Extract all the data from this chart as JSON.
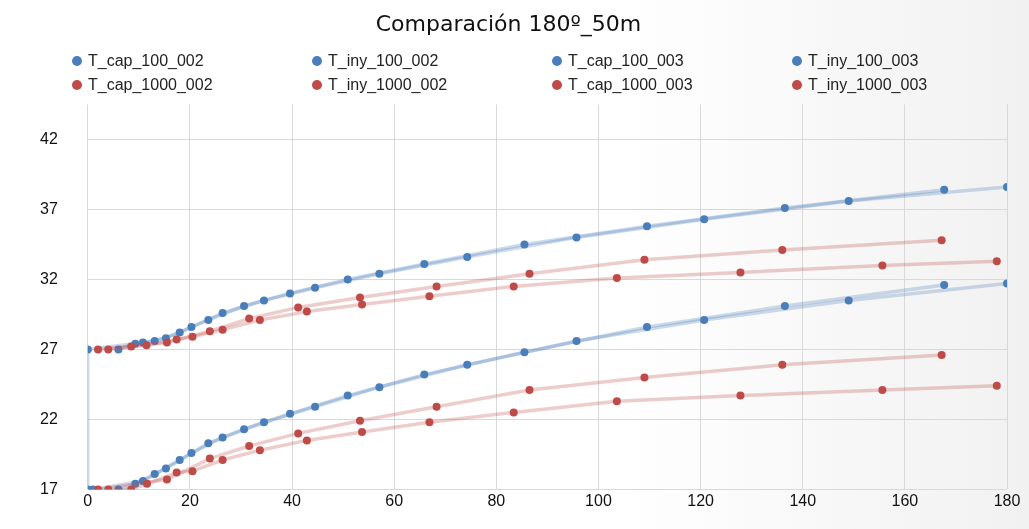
{
  "chart_data": {
    "type": "line",
    "title": "Comparación 180º_50m",
    "marker": "circle",
    "grid": true,
    "legend": "top",
    "line_style": "solid",
    "xlim": [
      0,
      180
    ],
    "xticks": [
      0,
      20,
      40,
      60,
      80,
      100,
      120,
      140,
      160,
      180
    ],
    "ylim": [
      17,
      44.5
    ],
    "yticks": [
      17,
      22,
      27,
      32,
      37,
      42
    ],
    "series": [
      {
        "name": "T_cap_100_002",
        "color": "#4a7ebb",
        "x": [
          1,
          10.8,
          15.3,
          23.6,
          30.6,
          39.6,
          50.9,
          65.9,
          85.5,
          109.5,
          136.5,
          167.7
        ],
        "values": [
          17,
          17.6,
          18.5,
          20.3,
          21.3,
          22.4,
          23.7,
          25.2,
          26.8,
          28.6,
          30.1,
          31.6
        ]
      },
      {
        "name": "T_iny_100_002",
        "color": "#4a7ebb",
        "x": [
          0,
          0,
          10.8,
          15.3,
          23.6,
          30.6,
          39.6,
          50.9,
          65.9,
          85.5,
          109.5,
          136.5,
          167.7
        ],
        "values": [
          17,
          27,
          27.5,
          27.8,
          29.1,
          30.1,
          31.0,
          32.0,
          33.1,
          34.5,
          35.8,
          37.1,
          38.4
        ]
      },
      {
        "name": "T_cap_100_003",
        "color": "#4a7ebb",
        "x": [
          6,
          9.3,
          13.1,
          18.0,
          20.3,
          26.4,
          34.5,
          44.5,
          57.1,
          74.3,
          95.7,
          120.7,
          149.0,
          180
        ],
        "values": [
          17,
          17.4,
          18.1,
          19.1,
          19.6,
          20.7,
          21.8,
          22.9,
          24.3,
          25.9,
          27.6,
          29.1,
          30.5,
          31.7
        ]
      },
      {
        "name": "T_iny_100_003",
        "color": "#4a7ebb",
        "x": [
          6,
          9.3,
          13.1,
          18.0,
          20.3,
          26.4,
          34.5,
          44.5,
          57.1,
          74.3,
          95.7,
          120.7,
          149.0,
          180
        ],
        "values": [
          27,
          27.4,
          27.6,
          28.2,
          28.6,
          29.6,
          30.5,
          31.4,
          32.4,
          33.6,
          35.0,
          36.3,
          37.6,
          38.6
        ]
      },
      {
        "name": "T_cap_1000_002",
        "color": "#be4b48",
        "x": [
          2,
          15.5,
          23.9,
          31.6,
          41.2,
          53.3,
          68.3,
          86.5,
          109,
          136,
          167.2
        ],
        "values": [
          17,
          17.7,
          19.2,
          20.1,
          21.0,
          21.9,
          22.9,
          24.1,
          25.0,
          25.9,
          26.6
        ]
      },
      {
        "name": "T_iny_1000_002",
        "color": "#be4b48",
        "x": [
          2,
          15.5,
          23.9,
          31.6,
          41.2,
          53.3,
          68.3,
          86.5,
          109,
          136,
          167.2
        ],
        "values": [
          27,
          27.5,
          28.3,
          29.2,
          30.0,
          30.7,
          31.5,
          32.4,
          33.4,
          34.1,
          34.8
        ]
      },
      {
        "name": "T_cap_1000_003",
        "color": "#be4b48",
        "x": [
          4,
          8.5,
          11.6,
          17.4,
          20.5,
          26.4,
          33.7,
          42.9,
          53.7,
          66.9,
          83.4,
          103.6,
          127.8,
          155.6,
          178
        ],
        "values": [
          17,
          17,
          17.4,
          18.2,
          18.3,
          19.1,
          19.8,
          20.5,
          21.1,
          21.8,
          22.5,
          23.3,
          23.7,
          24.1,
          24.4
        ]
      },
      {
        "name": "T_iny_1000_003",
        "color": "#be4b48",
        "x": [
          4,
          8.5,
          11.5,
          17.4,
          20.5,
          26.4,
          33.7,
          42.9,
          53.7,
          66.9,
          83.4,
          103.6,
          127.8,
          155.6,
          178
        ],
        "values": [
          27,
          27.2,
          27.3,
          27.7,
          27.9,
          28.4,
          29.1,
          29.7,
          30.2,
          30.8,
          31.5,
          32.1,
          32.5,
          33.0,
          33.3
        ]
      }
    ]
  }
}
